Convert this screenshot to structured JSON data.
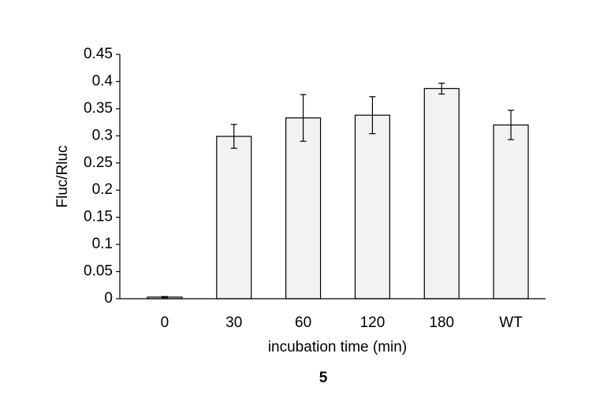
{
  "chart_data": {
    "type": "bar",
    "categories": [
      "0",
      "30",
      "60",
      "120",
      "180",
      "WT"
    ],
    "values": [
      0.003,
      0.299,
      0.333,
      0.338,
      0.387,
      0.32
    ],
    "errors": [
      0.001,
      0.022,
      0.043,
      0.034,
      0.01,
      0.027
    ],
    "color": "#f2f2f2",
    "ylabel": "Fluc/Rluc",
    "xlabel": "incubation time (min)",
    "caption": "5",
    "ylim": [
      0,
      0.45
    ],
    "yticks": [
      0,
      0.05,
      0.1,
      0.15,
      0.2,
      0.25,
      0.3,
      0.35,
      0.4,
      0.45
    ],
    "grid": false
  }
}
